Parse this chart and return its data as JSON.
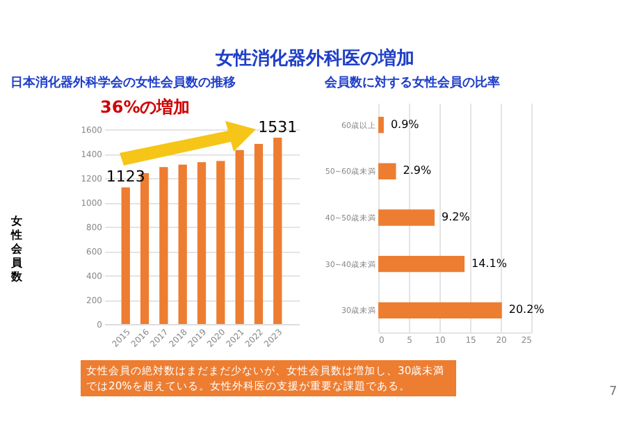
{
  "chart_data": [
    {
      "type": "bar",
      "title": "女性消化器外科医の増加",
      "subtitle": "日本消化器外科学会の女性会員数の推移",
      "ylabel": "女性会員数",
      "categories": [
        "2015",
        "2016",
        "2017",
        "2018",
        "2019",
        "2020",
        "2021",
        "2022",
        "2023"
      ],
      "values": [
        1123,
        1240,
        1290,
        1310,
        1330,
        1340,
        1430,
        1480,
        1531
      ],
      "value_labels": [
        "1123",
        null,
        null,
        null,
        null,
        null,
        null,
        null,
        "1531"
      ],
      "color": "#ed7d31",
      "ylim": [
        0,
        1600
      ],
      "yticks": [
        0,
        200,
        400,
        600,
        800,
        1000,
        1200,
        1400,
        1600
      ],
      "grid": "y",
      "annotations": [
        "36%の増加",
        "女性会員の絶対数はまだまだ少ないが、女性会員数は増加し、30歳未満では20%を超えている。女性外科医の支援が重要な課題である。",
        "7"
      ]
    },
    {
      "type": "bar",
      "orientation": "horizontal",
      "title": "会員数に対する女性会員の比率",
      "categories": [
        "60歳以上",
        "50~60歳未満",
        "40~50歳未満",
        "30~40歳未満",
        "30歳未満"
      ],
      "values": [
        0.9,
        2.9,
        9.2,
        14.1,
        20.2
      ],
      "value_labels": [
        "0.9%",
        "2.9%",
        "9.2%",
        "14.1%",
        "20.2%"
      ],
      "color": "#ed7d31",
      "xlim": [
        0,
        25
      ],
      "xticks": [
        0,
        5,
        10,
        15,
        20,
        25
      ],
      "grid": "x"
    }
  ]
}
